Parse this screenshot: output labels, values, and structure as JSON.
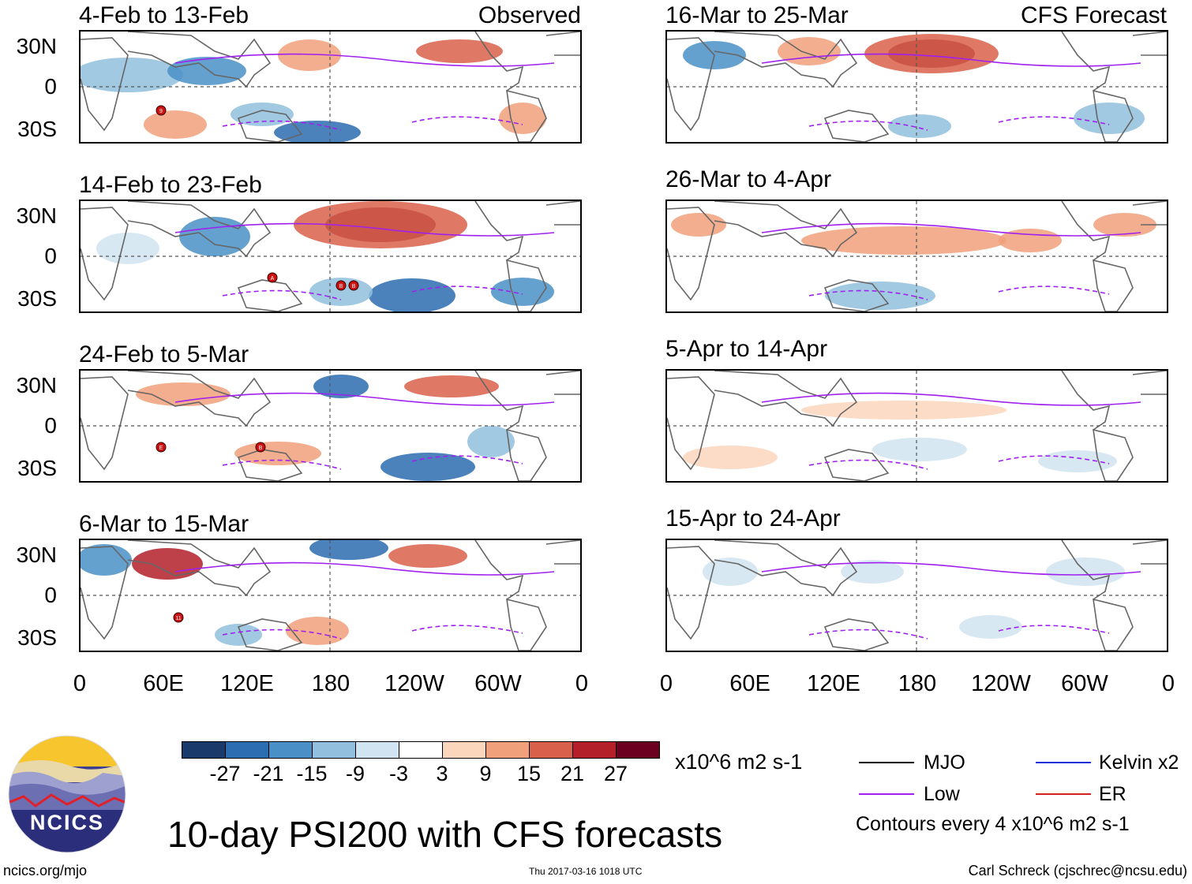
{
  "panels": [
    {
      "title": "4-Feb to 13-Feb",
      "tag": "Observed",
      "storms": [
        "9"
      ]
    },
    {
      "title": "14-Feb to 23-Feb",
      "tag": "",
      "storms": [
        "A",
        "B",
        "B"
      ]
    },
    {
      "title": "24-Feb to 5-Mar",
      "tag": "",
      "storms": [
        "E",
        "B"
      ]
    },
    {
      "title": "6-Mar to 15-Mar",
      "tag": "",
      "storms": [
        "11"
      ]
    },
    {
      "title": "16-Mar to 25-Mar",
      "tag": "CFS Forecast",
      "storms": []
    },
    {
      "title": "26-Mar to 4-Apr",
      "tag": "",
      "storms": []
    },
    {
      "title": "5-Apr to 14-Apr",
      "tag": "",
      "storms": []
    },
    {
      "title": "15-Apr to 24-Apr",
      "tag": "",
      "storms": []
    }
  ],
  "lat_labels": [
    "30N",
    "0",
    "30S"
  ],
  "lon_labels": [
    "0",
    "60E",
    "120E",
    "180",
    "120W",
    "60W",
    "0"
  ],
  "colorbar": {
    "ticks": [
      "-27",
      "-21",
      "-15",
      "-9",
      "-3",
      "3",
      "9",
      "15",
      "21",
      "27"
    ],
    "colors": [
      "#1a3a6b",
      "#2c6cb0",
      "#4a90c6",
      "#92bfdd",
      "#d1e4f1",
      "#ffffff",
      "#fcd5bd",
      "#f0a07a",
      "#d9604a",
      "#b3202a",
      "#6b0020"
    ],
    "units": "x10^6 m2 s-1"
  },
  "legend": {
    "mjo": {
      "label": "MJO",
      "color": "#000000"
    },
    "low": {
      "label": "Low",
      "color": "#a020f0"
    },
    "kelvin": {
      "label": "Kelvin x2",
      "color": "#1f2fd6"
    },
    "er": {
      "label": "ER",
      "color": "#d21f1f"
    },
    "contours_note": "Contours every 4 x10^6 m2 s-1"
  },
  "main_title": "10-day PSI200 with CFS forecasts",
  "logo_text": "NCICS",
  "url": "ncics.org/mjo",
  "timestamp": "Thu 2017-03-16 1018 UTC",
  "credit": "Carl Schreck (cjschrec@ncsu.edu)"
}
